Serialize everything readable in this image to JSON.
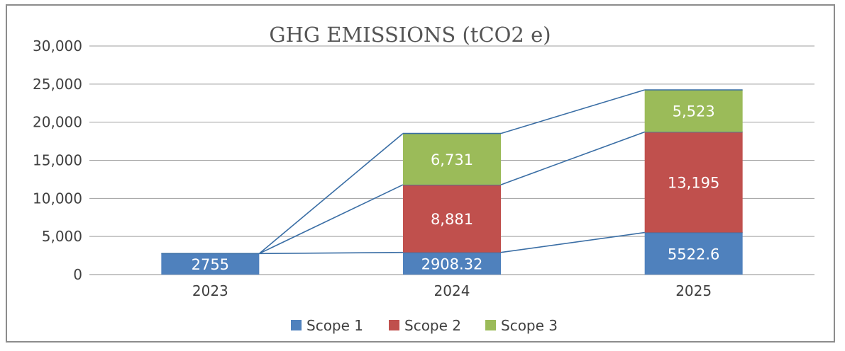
{
  "chart_data": {
    "type": "bar",
    "stacked": true,
    "title": "GHG EMISSIONS (tCO2 e)",
    "categories": [
      "2023",
      "2024",
      "2025"
    ],
    "series": [
      {
        "name": "Scope 1",
        "values": [
          2755,
          2908.32,
          5522.6
        ],
        "labels": [
          "2755",
          "2908.32",
          "5522.6"
        ],
        "color": "#4f81bd"
      },
      {
        "name": "Scope 2",
        "values": [
          0,
          8881,
          13195
        ],
        "labels": [
          "",
          "8,881",
          "13,195"
        ],
        "color": "#c0504d"
      },
      {
        "name": "Scope 3",
        "values": [
          0,
          6731,
          5523
        ],
        "labels": [
          "",
          "6,731",
          "5,523"
        ],
        "color": "#9bbb59"
      }
    ],
    "y_ticks": [
      "0",
      "5,000",
      "10,000",
      "15,000",
      "20,000",
      "25,000",
      "30,000"
    ],
    "ylim": [
      0,
      30000
    ],
    "grid": true,
    "series_lines": true,
    "series_line_color": "#3a6ea5",
    "legend_position": "bottom"
  }
}
